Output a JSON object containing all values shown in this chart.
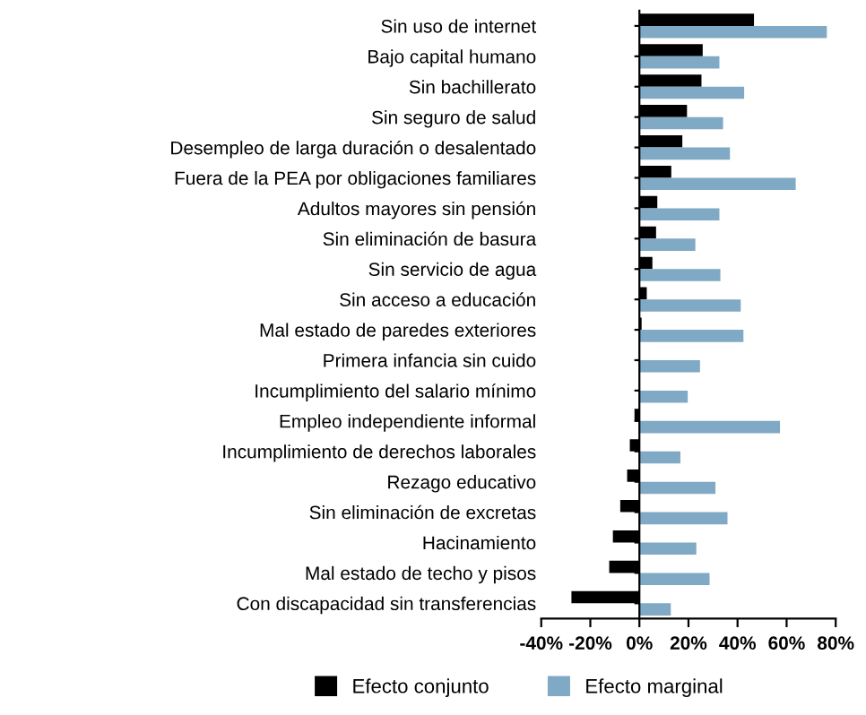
{
  "chart_data": {
    "type": "bar",
    "orientation": "horizontal",
    "categories": [
      "Sin uso de internet",
      "Bajo capital humano",
      "Sin bachillerato",
      "Sin seguro de salud",
      "Desempleo de larga duración o desalentado",
      "Fuera de la PEA por obligaciones familiares",
      "Adultos mayores sin pensión",
      "Sin eliminación de basura",
      "Sin servicio de agua",
      "Sin acceso a educación",
      "Mal estado de paredes exteriores",
      "Primera infancia sin cuido",
      "Incumplimiento del salario mínimo",
      "Empleo independiente informal",
      "Incumplimiento de derechos laborales",
      "Rezago educativo",
      "Sin eliminación de excretas",
      "Hacinamiento",
      "Mal estado de techo y pisos",
      "Con discapacidad sin transferencias"
    ],
    "series": [
      {
        "name": "Efecto conjunto",
        "color": "#000000",
        "values": [
          46.7,
          25.8,
          25.3,
          19.4,
          17.5,
          13.0,
          7.3,
          6.8,
          5.3,
          3.0,
          0.9,
          0.2,
          null,
          -2.0,
          -3.9,
          -5.0,
          -7.8,
          -10.8,
          -12.3,
          -27.7
        ]
      },
      {
        "name": "Efecto marginal",
        "color": "#7fa9c4",
        "values": [
          76.4,
          32.6,
          42.7,
          34.1,
          36.9,
          63.7,
          32.6,
          22.8,
          33.0,
          41.3,
          42.4,
          24.7,
          19.7,
          57.3,
          16.7,
          31.0,
          35.9,
          23.2,
          28.6,
          12.8
        ]
      }
    ],
    "xlim": [
      -40,
      80
    ],
    "xticks": [
      {
        "value": -40,
        "label": "-40%"
      },
      {
        "value": -20,
        "label": "-20%"
      },
      {
        "value": 0,
        "label": "0%"
      },
      {
        "value": 20,
        "label": "20%"
      },
      {
        "value": 40,
        "label": "40%"
      },
      {
        "value": 60,
        "label": "60%"
      },
      {
        "value": 80,
        "label": "80%"
      }
    ],
    "legend": "bottom"
  }
}
